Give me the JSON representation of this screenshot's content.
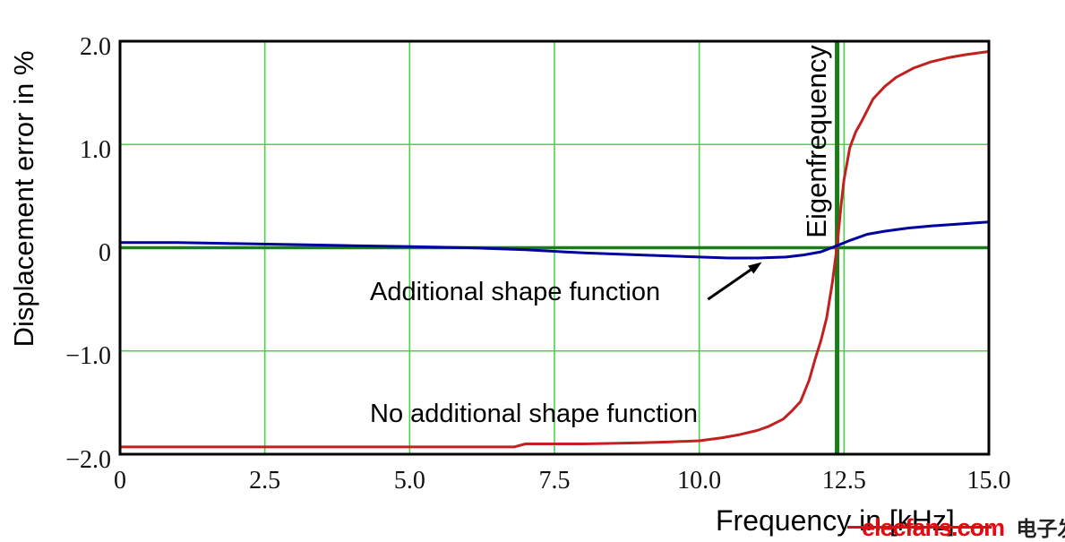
{
  "figure": {
    "background": "#ffffff"
  },
  "annotations": {
    "blue_label": "Additional shape function",
    "red_label": "No additional shape function",
    "eigenfrequency_label": "Eigenfrequency"
  },
  "watermark": {
    "site": "elecfans.com",
    "chinese": "电子发烧友",
    "color": "#e30b13"
  },
  "colors": {
    "grid_light_green": "#4ad34a",
    "reference_dark_green": "#1a7d1a",
    "axis_black": "#000000"
  },
  "chart_data": {
    "type": "line",
    "title": "",
    "xlabel": "Frequency in [kHz]",
    "ylabel": "Displacement error in %",
    "xlim": [
      0,
      15
    ],
    "ylim": [
      -2,
      2
    ],
    "grid": true,
    "legend_position": "none (inline text annotations)",
    "x_ticks": [
      {
        "v": 0,
        "label": "0"
      },
      {
        "v": 2.5,
        "label": "2.5"
      },
      {
        "v": 5,
        "label": "5.0"
      },
      {
        "v": 7.5,
        "label": "7.5"
      },
      {
        "v": 10,
        "label": "10.0"
      },
      {
        "v": 12.5,
        "label": "12.5"
      },
      {
        "v": 15,
        "label": "15.0"
      }
    ],
    "y_ticks": [
      {
        "v": 2,
        "label": "2.0"
      },
      {
        "v": 1,
        "label": "1.0"
      },
      {
        "v": 0,
        "label": "0"
      },
      {
        "v": -1,
        "label": "−1.0"
      },
      {
        "v": -2,
        "label": "−2.0"
      }
    ],
    "reference_lines": {
      "eigenfrequency_x_kHz": 12.38,
      "zero_error_y": 0
    },
    "arrow": {
      "from_data": [
        10.15,
        -0.5
      ],
      "to_data": [
        11.08,
        -0.14
      ]
    },
    "series": [
      {
        "name": "No additional shape function",
        "color": "#c32020",
        "points": [
          [
            0,
            -1.93
          ],
          [
            1,
            -1.93
          ],
          [
            2,
            -1.93
          ],
          [
            3,
            -1.93
          ],
          [
            4,
            -1.93
          ],
          [
            5,
            -1.93
          ],
          [
            6,
            -1.93
          ],
          [
            6.8,
            -1.93
          ],
          [
            7,
            -1.9
          ],
          [
            8,
            -1.9
          ],
          [
            9,
            -1.89
          ],
          [
            9.5,
            -1.88
          ],
          [
            10,
            -1.87
          ],
          [
            10.4,
            -1.84
          ],
          [
            10.7,
            -1.81
          ],
          [
            11,
            -1.77
          ],
          [
            11.2,
            -1.73
          ],
          [
            11.45,
            -1.66
          ],
          [
            11.6,
            -1.58
          ],
          [
            11.75,
            -1.49
          ],
          [
            11.9,
            -1.28
          ],
          [
            12,
            -1.08
          ],
          [
            12.1,
            -0.9
          ],
          [
            12.2,
            -0.68
          ],
          [
            12.3,
            -0.33
          ],
          [
            12.38,
            0.02
          ],
          [
            12.45,
            0.42
          ],
          [
            12.5,
            0.66
          ],
          [
            12.6,
            0.97
          ],
          [
            12.7,
            1.12
          ],
          [
            12.8,
            1.22
          ],
          [
            13,
            1.44
          ],
          [
            13.2,
            1.56
          ],
          [
            13.4,
            1.65
          ],
          [
            13.7,
            1.74
          ],
          [
            14,
            1.8
          ],
          [
            14.3,
            1.84
          ],
          [
            14.6,
            1.87
          ],
          [
            15,
            1.9
          ]
        ]
      },
      {
        "name": "Additional shape function",
        "color": "#0000a0",
        "points": [
          [
            0,
            0.05
          ],
          [
            1,
            0.05
          ],
          [
            2,
            0.04
          ],
          [
            3,
            0.03
          ],
          [
            4,
            0.02
          ],
          [
            5,
            0.01
          ],
          [
            6,
            0
          ],
          [
            7,
            -0.02
          ],
          [
            8,
            -0.05
          ],
          [
            9,
            -0.07
          ],
          [
            9.5,
            -0.08
          ],
          [
            10,
            -0.09
          ],
          [
            10.5,
            -0.1
          ],
          [
            11,
            -0.1
          ],
          [
            11.5,
            -0.09
          ],
          [
            11.8,
            -0.07
          ],
          [
            12.1,
            -0.04
          ],
          [
            12.38,
            0.02
          ],
          [
            12.6,
            0.07
          ],
          [
            12.9,
            0.13
          ],
          [
            13.2,
            0.16
          ],
          [
            13.6,
            0.19
          ],
          [
            14,
            0.21
          ],
          [
            14.5,
            0.23
          ],
          [
            15,
            0.25
          ]
        ]
      }
    ]
  }
}
